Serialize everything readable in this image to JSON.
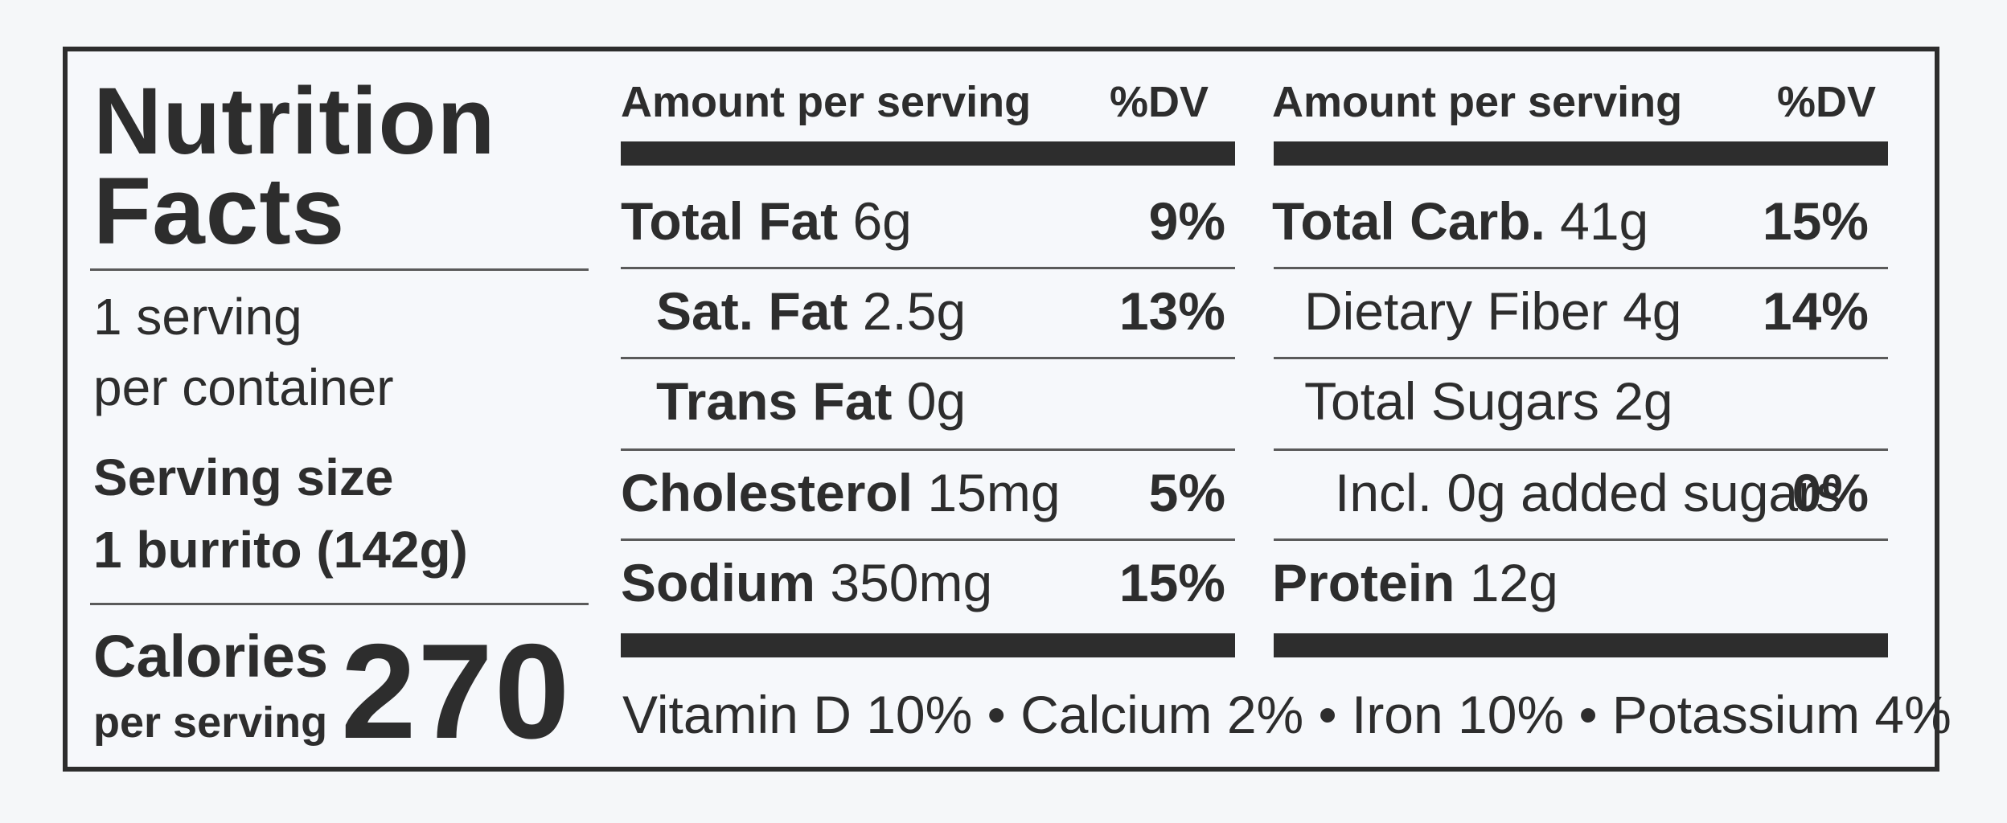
{
  "title": {
    "line1": "Nutrition",
    "line2": "Facts"
  },
  "servings": {
    "line1": "1 serving",
    "line2": "per container"
  },
  "serving_size": {
    "label": "Serving size",
    "value": "1 burrito (142g)"
  },
  "calories": {
    "label": "Calories",
    "sublabel": "per serving",
    "value": "270"
  },
  "left_column": {
    "header": "Amount per serving",
    "dv_header": "%DV",
    "rows": [
      {
        "name": "Total Fat",
        "amount": "6g",
        "dv": "9%"
      },
      {
        "name": "Sat. Fat",
        "amount": "2.5g",
        "dv": "13%"
      },
      {
        "name": "Trans Fat",
        "amount": "0g",
        "dv": ""
      },
      {
        "name": "Cholesterol",
        "amount": "15mg",
        "dv": "5%"
      },
      {
        "name": "Sodium",
        "amount": "350mg",
        "dv": "15%"
      }
    ]
  },
  "right_column": {
    "header": "Amount per serving",
    "dv_header": "%DV",
    "rows": [
      {
        "name": "Total Carb.",
        "amount": "41g",
        "dv": "15%"
      },
      {
        "name": "Dietary Fiber 4g",
        "amount": "",
        "dv": "14%"
      },
      {
        "name": "Total Sugars 2g",
        "amount": "",
        "dv": ""
      },
      {
        "name": "Incl. 0g added sugars",
        "amount": "",
        "dv": "0%"
      },
      {
        "name": "Protein",
        "amount": "12g",
        "dv": ""
      }
    ]
  },
  "vitamins": "Vitamin D 10% • Calcium 2% • Iron 10% • Potassium 4%"
}
